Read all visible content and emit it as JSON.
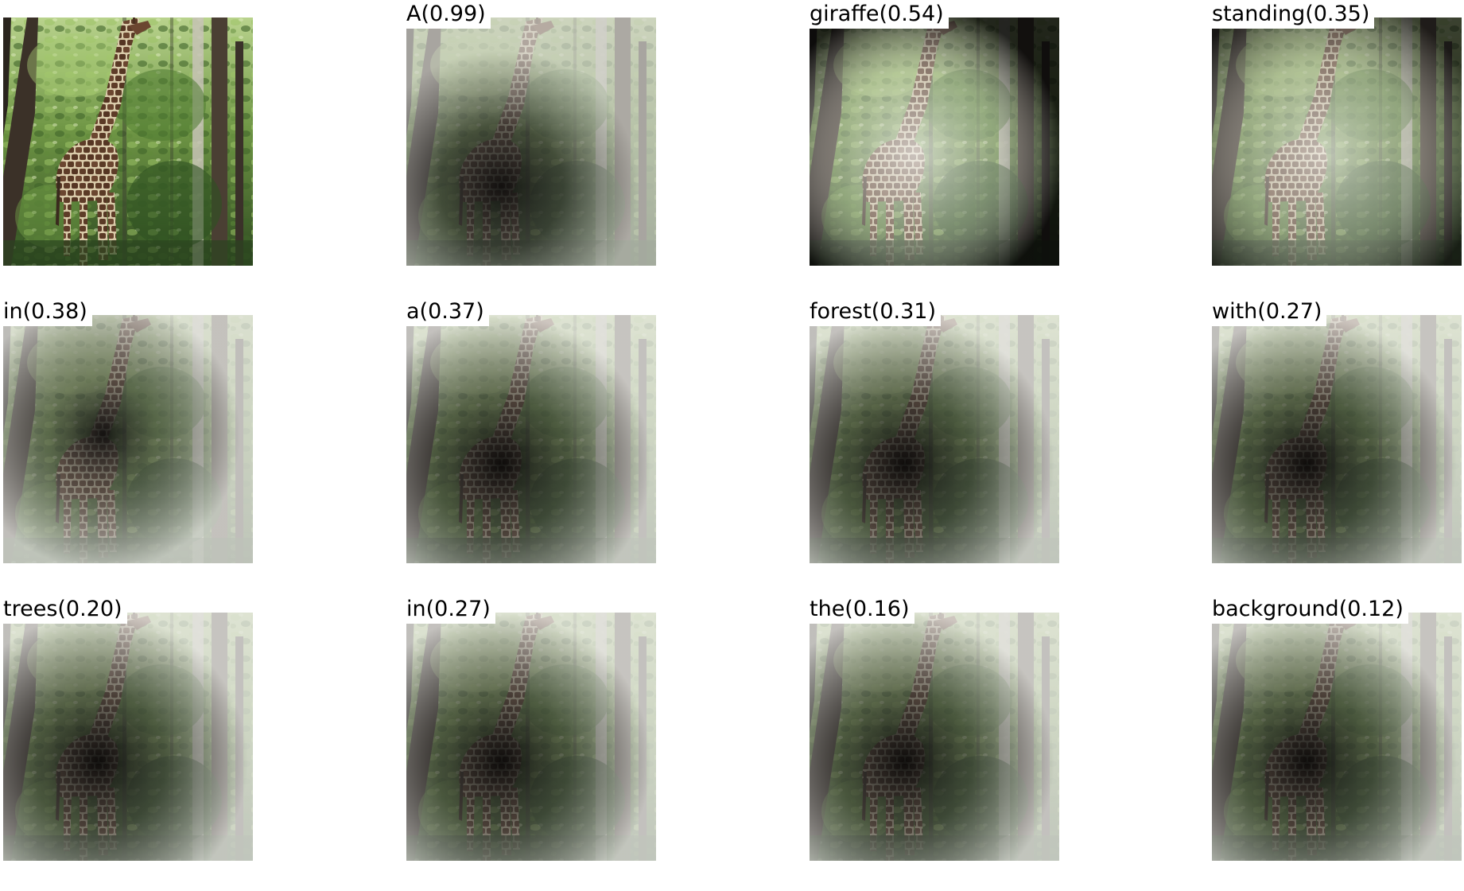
{
  "figure": {
    "source_image": {
      "label": ""
    },
    "panels": [
      {
        "word": "A",
        "score": "0.99",
        "caption": "A(0.99)"
      },
      {
        "word": "giraffe",
        "score": "0.54",
        "caption": "giraffe(0.54)"
      },
      {
        "word": "standing",
        "score": "0.35",
        "caption": "standing(0.35)"
      },
      {
        "word": "in",
        "score": "0.38",
        "caption": "in(0.38)"
      },
      {
        "word": "a",
        "score": "0.37",
        "caption": "a(0.37)"
      },
      {
        "word": "forest",
        "score": "0.31",
        "caption": "forest(0.31)"
      },
      {
        "word": "with",
        "score": "0.27",
        "caption": "with(0.27)"
      },
      {
        "word": "trees",
        "score": "0.20",
        "caption": "trees(0.20)"
      },
      {
        "word": "in",
        "score": "0.27",
        "caption": "in(0.27)"
      },
      {
        "word": "the",
        "score": "0.16",
        "caption": "the(0.16)"
      },
      {
        "word": "background",
        "score": "0.12",
        "caption": "background(0.12)"
      }
    ]
  },
  "colors": {
    "foliage_dark": "#2f4a22",
    "foliage_light": "#8fb35a",
    "trunk": "#3b3128",
    "giraffe_patch": "#5a3a26",
    "giraffe_line": "#d8c9a8",
    "attention_light": "#e9e9e6",
    "attention_dark": "#0b0b0b"
  }
}
